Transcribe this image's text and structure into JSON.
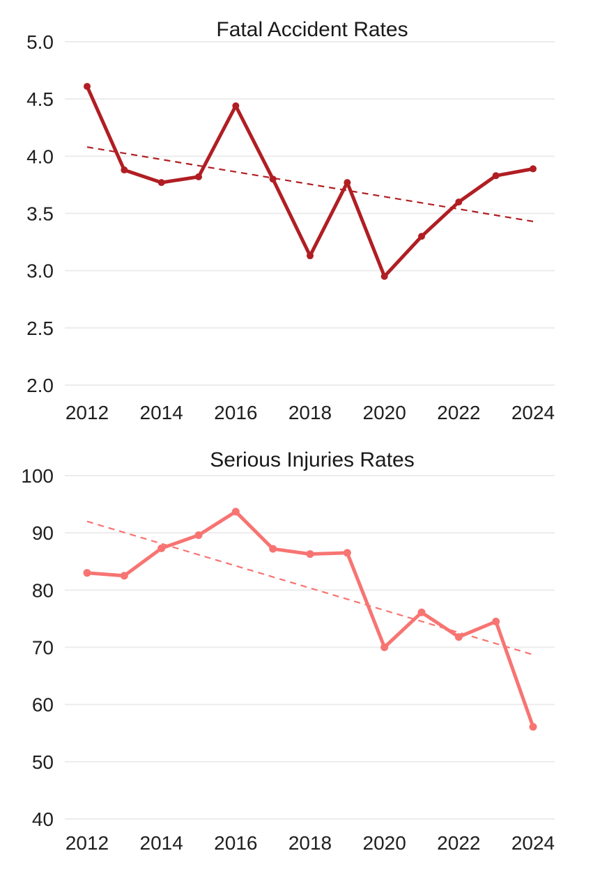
{
  "page": {
    "background": "#ffffff",
    "grid_color": "#ececec",
    "text_color": "#1f1f1f"
  },
  "chart_data": [
    {
      "type": "line",
      "title": "Fatal Accident Rates",
      "x": [
        2012,
        2013,
        2014,
        2015,
        2016,
        2017,
        2018,
        2019,
        2020,
        2021,
        2022,
        2023,
        2024
      ],
      "series": [
        {
          "name": "fatal-accident-rate",
          "values": [
            4.61,
            3.88,
            3.77,
            3.82,
            4.44,
            3.8,
            3.13,
            3.77,
            2.95,
            3.3,
            3.6,
            3.83,
            3.89
          ],
          "color": "#b01e23"
        }
      ],
      "trendline": {
        "start": 4.08,
        "end": 3.43,
        "style": "dashed",
        "color": "#b01e23"
      },
      "ylim": [
        2.0,
        5.0
      ],
      "ytick_labels": [
        "5.0",
        "4.5",
        "4.0",
        "3.5",
        "3.0",
        "2.5",
        "2.0"
      ],
      "xtick_labels": [
        "2012",
        "2014",
        "2016",
        "2018",
        "2020",
        "2022",
        "2024"
      ],
      "grid": "horizontal-only",
      "legend": "none"
    },
    {
      "type": "line",
      "title": "Serious Injuries Rates",
      "x": [
        2012,
        2013,
        2014,
        2015,
        2016,
        2017,
        2018,
        2019,
        2020,
        2021,
        2022,
        2023,
        2024
      ],
      "series": [
        {
          "name": "serious-injuries-rate",
          "values": [
            83.0,
            82.5,
            87.3,
            89.6,
            93.7,
            87.2,
            86.3,
            86.5,
            70.0,
            76.1,
            71.8,
            74.5,
            56.1
          ],
          "color": "#f77472"
        }
      ],
      "trendline": {
        "start": 92.0,
        "end": 68.7,
        "style": "dashed",
        "color": "#f77472"
      },
      "ylim": [
        40,
        100
      ],
      "ytick_labels": [
        "100",
        "90",
        "80",
        "70",
        "60",
        "50",
        "40"
      ],
      "xtick_labels": [
        "2012",
        "2014",
        "2016",
        "2018",
        "2020",
        "2022",
        "2024"
      ],
      "grid": "horizontal-only",
      "legend": "none"
    }
  ]
}
